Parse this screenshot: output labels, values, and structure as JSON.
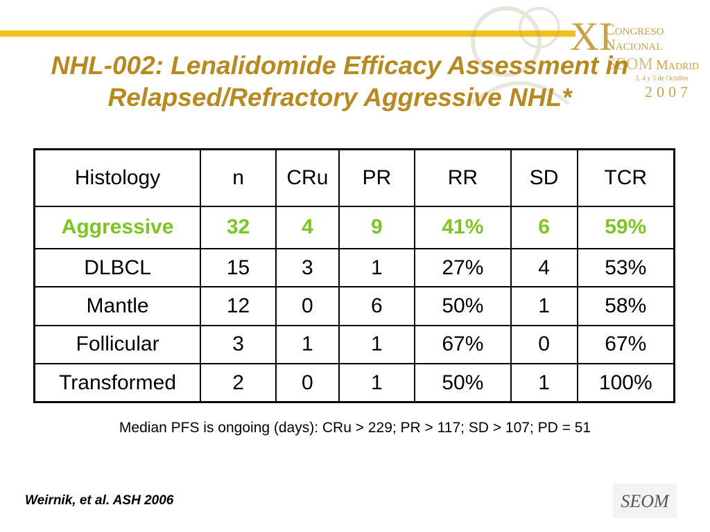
{
  "title": {
    "line1": "NHL-002: Lenalidomide Efficacy Assessment in",
    "line2": "Relapsed/Refractory Aggressive NHL*"
  },
  "conference_logo": {
    "numeral": "XI",
    "line1": "Congreso",
    "line2": "Nacional",
    "line3": "SEOM",
    "city": "Madrid",
    "dates": "3, 4 y 5 de Octubre",
    "year": "2007"
  },
  "table": {
    "headers": [
      "Histology",
      "n",
      "CRu",
      "PR",
      "RR",
      "SD",
      "TCR"
    ],
    "highlight": [
      "Aggressive",
      "32",
      "4",
      "9",
      "41%",
      "6",
      "59%"
    ],
    "rows": [
      [
        "DLBCL",
        "15",
        "3",
        "1",
        "27%",
        "4",
        "53%"
      ],
      [
        "Mantle",
        "12",
        "0",
        "6",
        "50%",
        "1",
        "58%"
      ],
      [
        "Follicular",
        "3",
        "1",
        "1",
        "67%",
        "0",
        "67%"
      ],
      [
        "Transformed",
        "2",
        "0",
        "1",
        "50%",
        "1",
        "100%"
      ]
    ]
  },
  "footnote": "Median PFS is ongoing (days): CRu > 229; PR > 117; SD > 107; PD = 51",
  "citation": "Weirnik, et al. ASH 2006",
  "seom_logo_text": "SEOM",
  "colors": {
    "title": "#b8891f",
    "accent_bar": "#f2c11e",
    "highlight_row": "#7cc522",
    "logo_gold": "#c9a24a"
  }
}
